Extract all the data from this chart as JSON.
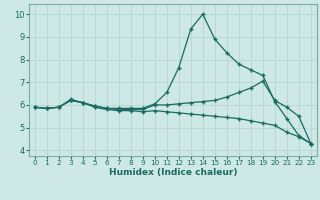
{
  "xlabel": "Humidex (Indice chaleur)",
  "ylabel": "",
  "bg_color": "#cde8e5",
  "grid_color": "#b8d8d5",
  "line_color": "#1a6b60",
  "xlim": [
    -0.5,
    23.5
  ],
  "ylim": [
    3.75,
    10.45
  ],
  "xticks": [
    0,
    1,
    2,
    3,
    4,
    5,
    6,
    7,
    8,
    9,
    10,
    11,
    12,
    13,
    14,
    15,
    16,
    17,
    18,
    19,
    20,
    21,
    22,
    23
  ],
  "yticks": [
    4,
    5,
    6,
    7,
    8,
    9,
    10
  ],
  "line1_x": [
    0,
    1,
    2,
    3,
    4,
    5,
    6,
    7,
    8,
    9,
    10,
    11,
    12,
    13,
    14,
    15,
    16,
    17,
    18,
    19,
    20,
    21,
    22,
    23
  ],
  "line1_y": [
    5.9,
    5.85,
    5.9,
    6.2,
    6.1,
    5.95,
    5.85,
    5.85,
    5.85,
    5.85,
    6.05,
    6.55,
    7.65,
    9.35,
    10.0,
    8.9,
    8.3,
    7.8,
    7.55,
    7.3,
    6.15,
    5.4,
    4.65,
    4.3
  ],
  "line2_x": [
    0,
    1,
    2,
    3,
    4,
    5,
    6,
    7,
    8,
    9,
    10,
    11,
    12,
    13,
    14,
    15,
    16,
    17,
    18,
    19,
    20,
    21,
    22,
    23
  ],
  "line2_y": [
    5.9,
    5.85,
    5.9,
    6.2,
    6.1,
    5.95,
    5.85,
    5.8,
    5.8,
    5.8,
    6.0,
    6.0,
    6.05,
    6.1,
    6.15,
    6.2,
    6.35,
    6.55,
    6.75,
    7.05,
    6.2,
    5.9,
    5.5,
    4.3
  ],
  "line3_x": [
    0,
    1,
    2,
    3,
    4,
    5,
    6,
    7,
    8,
    9,
    10,
    11,
    12,
    13,
    14,
    15,
    16,
    17,
    18,
    19,
    20,
    21,
    22,
    23
  ],
  "line3_y": [
    5.9,
    5.85,
    5.9,
    6.25,
    6.1,
    5.9,
    5.8,
    5.75,
    5.75,
    5.7,
    5.75,
    5.7,
    5.65,
    5.6,
    5.55,
    5.5,
    5.45,
    5.4,
    5.3,
    5.2,
    5.1,
    4.8,
    4.6,
    4.3
  ],
  "marker": "+",
  "markersize": 3.5,
  "linewidth": 0.9
}
